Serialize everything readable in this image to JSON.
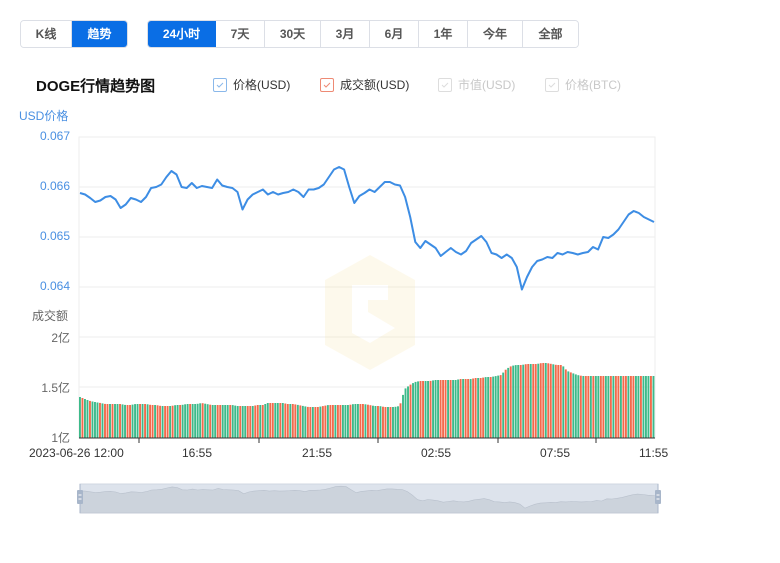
{
  "view_tabs": [
    {
      "label": "K线",
      "active": false
    },
    {
      "label": "趋势",
      "active": true
    }
  ],
  "range_tabs": [
    {
      "label": "24小时",
      "active": true
    },
    {
      "label": "7天",
      "active": false
    },
    {
      "label": "30天",
      "active": false
    },
    {
      "label": "3月",
      "active": false
    },
    {
      "label": "6月",
      "active": false
    },
    {
      "label": "1年",
      "active": false
    },
    {
      "label": "今年",
      "active": false
    },
    {
      "label": "全部",
      "active": false
    }
  ],
  "chart_title": "DOGE行情趋势图",
  "legend": [
    {
      "label": "价格(USD)",
      "checked": true,
      "enabled": true,
      "color": "#4a90e2"
    },
    {
      "label": "成交额(USD)",
      "checked": true,
      "enabled": true,
      "color": "#f07050"
    },
    {
      "label": "市值(USD)",
      "checked": true,
      "enabled": false,
      "color": "#cccccc"
    },
    {
      "label": "价格(BTC)",
      "checked": true,
      "enabled": false,
      "color": "#cccccc"
    }
  ],
  "colors": {
    "price_line": "#3d8de4",
    "volume_up": "#3dba8a",
    "volume_down": "#f26a4c",
    "grid": "#eeeeee",
    "accent": "#0a6ee5"
  },
  "chart_data": {
    "type": "line+bar",
    "title": "DOGE行情趋势图",
    "x_labels": [
      "2023-06-26 12:00",
      "16:55",
      "21:55",
      "02:55",
      "07:55",
      "11:55"
    ],
    "price_axis": {
      "label": "USD价格",
      "ticks": [
        "0.067",
        "0.066",
        "0.065",
        "0.064"
      ],
      "ylim": [
        0.0637,
        0.067
      ]
    },
    "volume_axis": {
      "label": "成交额",
      "ticks": [
        "2亿",
        "1.5亿",
        "1亿"
      ],
      "ylim": [
        1.0,
        2.0
      ],
      "unit": "亿 USD"
    },
    "series": [
      {
        "name": "价格(USD)",
        "type": "line",
        "values": [
          0.06588,
          0.06585,
          0.06578,
          0.0657,
          0.06573,
          0.0658,
          0.06582,
          0.06575,
          0.06558,
          0.06565,
          0.06578,
          0.06575,
          0.0657,
          0.0658,
          0.06598,
          0.066,
          0.06605,
          0.0662,
          0.06632,
          0.06625,
          0.066,
          0.06598,
          0.06608,
          0.06598,
          0.06602,
          0.066,
          0.06598,
          0.06615,
          0.06603,
          0.066,
          0.06598,
          0.0659,
          0.06555,
          0.06575,
          0.06585,
          0.0659,
          0.06595,
          0.06585,
          0.0659,
          0.06585,
          0.06588,
          0.0659,
          0.06595,
          0.0659,
          0.0658,
          0.06595,
          0.06595,
          0.06598,
          0.06605,
          0.0662,
          0.06635,
          0.0664,
          0.06635,
          0.066,
          0.06568,
          0.06582,
          0.06588,
          0.06595,
          0.0659,
          0.066,
          0.0661,
          0.0661,
          0.06605,
          0.06603,
          0.0658,
          0.0654,
          0.0649,
          0.06478,
          0.06492,
          0.06485,
          0.06478,
          0.06462,
          0.0647,
          0.06478,
          0.0647,
          0.06465,
          0.06472,
          0.06488,
          0.06495,
          0.06502,
          0.0649,
          0.06468,
          0.06465,
          0.06458,
          0.06465,
          0.06458,
          0.0644,
          0.06395,
          0.0642,
          0.0644,
          0.06452,
          0.06455,
          0.0646,
          0.06458,
          0.06468,
          0.06465,
          0.0647,
          0.06468,
          0.06465,
          0.06468,
          0.0647,
          0.0648,
          0.06475,
          0.065,
          0.06498,
          0.06505,
          0.06515,
          0.0653,
          0.06545,
          0.06552,
          0.06548,
          0.0654,
          0.06535,
          0.0653
        ]
      },
      {
        "name": "成交额(USD)",
        "type": "bar",
        "values_yi": [
          1.4,
          1.38,
          1.36,
          1.35,
          1.34,
          1.33,
          1.33,
          1.33,
          1.33,
          1.32,
          1.32,
          1.33,
          1.33,
          1.33,
          1.32,
          1.32,
          1.31,
          1.31,
          1.31,
          1.32,
          1.32,
          1.33,
          1.33,
          1.33,
          1.34,
          1.33,
          1.32,
          1.32,
          1.32,
          1.32,
          1.32,
          1.31,
          1.31,
          1.31,
          1.31,
          1.32,
          1.32,
          1.34,
          1.34,
          1.34,
          1.34,
          1.33,
          1.33,
          1.32,
          1.31,
          1.3,
          1.3,
          1.3,
          1.31,
          1.32,
          1.32,
          1.32,
          1.32,
          1.32,
          1.33,
          1.33,
          1.33,
          1.32,
          1.31,
          1.31,
          1.3,
          1.3,
          1.3,
          1.31,
          1.48,
          1.52,
          1.55,
          1.56,
          1.56,
          1.56,
          1.57,
          1.57,
          1.57,
          1.57,
          1.57,
          1.58,
          1.58,
          1.58,
          1.59,
          1.59,
          1.6,
          1.6,
          1.61,
          1.62,
          1.68,
          1.71,
          1.72,
          1.72,
          1.73,
          1.73,
          1.73,
          1.74,
          1.74,
          1.73,
          1.72,
          1.72,
          1.66,
          1.64,
          1.62,
          1.61,
          1.61,
          1.61,
          1.61,
          1.61,
          1.61,
          1.61,
          1.61,
          1.61,
          1.61,
          1.61,
          1.61,
          1.61,
          1.61,
          1.61
        ]
      }
    ],
    "grid": true,
    "legend_position": "top",
    "data_zoom": {
      "start": 0,
      "end": 100
    }
  },
  "watermark": "logo"
}
